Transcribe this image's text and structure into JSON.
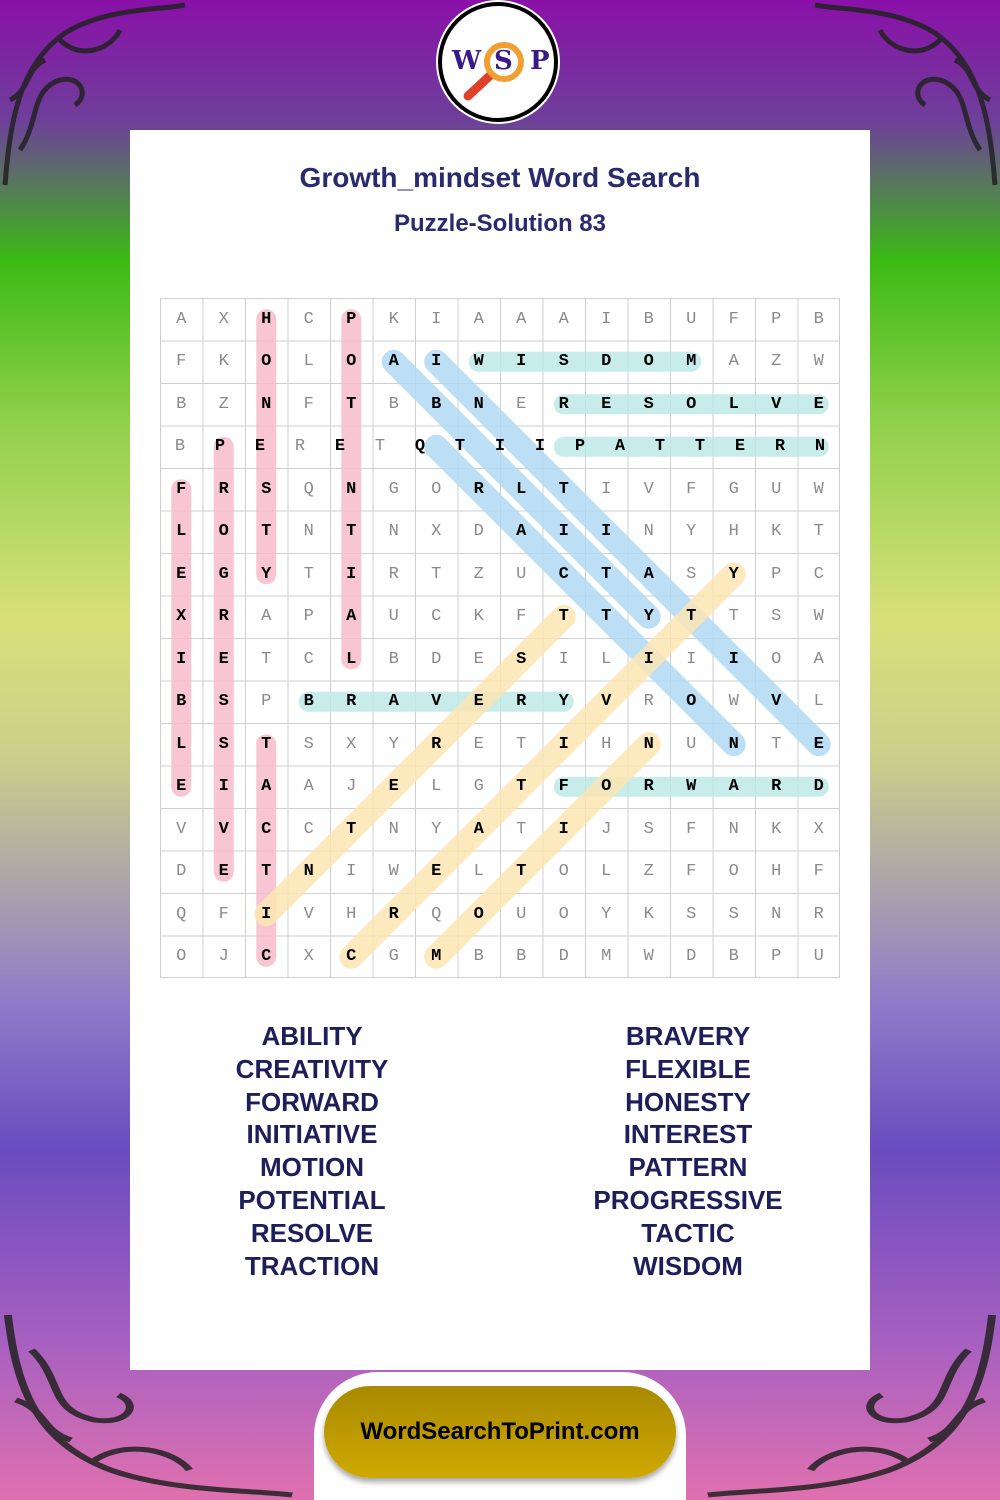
{
  "logo": {
    "letters": [
      "W",
      "S",
      "P"
    ]
  },
  "header": {
    "title": "Growth_mindset Word Search",
    "subtitle": "Puzzle-Solution 83"
  },
  "grid": {
    "rows": [
      "AXHCPKIAAAIBUFPB",
      "FKOLOAIWISDOMAZW",
      "BZNFTBBNERESOLVE",
      "BPERETQTIIPATTERN",
      "FRSQNGORLTIVFGUW",
      "LOTNTNXDAIINYHKT",
      "EGYTIRTZUCTASYPC",
      "XRAPAUCKFTTYTTSW",
      "IETCLBDESILIIIOA",
      "BSPBRAVERYVROWVL",
      "LSTSXYRETIHNUNTE",
      "EIAAJELGTFORWARD",
      "VVCCTNYATIJSFNKX",
      "DETNIWELTOLZFOHF",
      "QFIVHRQOUOYKSSNR",
      "OJCXCGMBBDMWDBPU"
    ]
  },
  "colors": {
    "pink": "#f7bccb",
    "teal": "#bde9e6",
    "blue": "#b2d9f4",
    "yellow": "#fbe5b3",
    "title": "#2a2a6e",
    "words": "#1e1e5a",
    "button": "#c4a000"
  },
  "solutions": [
    {
      "word": "HONESTY",
      "row": 0,
      "col": 2,
      "dir": "down",
      "color": "pink"
    },
    {
      "word": "POTENTIAL",
      "row": 0,
      "col": 4,
      "dir": "down",
      "color": "pink"
    },
    {
      "word": "PROGRESSIVE",
      "row": 3,
      "col": 1,
      "dir": "down",
      "color": "pink"
    },
    {
      "word": "FLEXIBLE",
      "row": 4,
      "col": 0,
      "dir": "down",
      "color": "pink"
    },
    {
      "word": "TACTIC",
      "row": 10,
      "col": 2,
      "dir": "down",
      "color": "pink"
    },
    {
      "word": "WISDOM",
      "row": 1,
      "col": 7,
      "dir": "right",
      "color": "teal"
    },
    {
      "word": "RESOLVE",
      "row": 2,
      "col": 9,
      "dir": "right",
      "color": "teal"
    },
    {
      "word": "PATTERN",
      "row": 3,
      "col": 9,
      "dir": "right",
      "color": "teal"
    },
    {
      "word": "BRAVERY",
      "row": 9,
      "col": 3,
      "dir": "right",
      "color": "teal"
    },
    {
      "word": "FORWARD",
      "row": 11,
      "col": 9,
      "dir": "right",
      "color": "teal"
    },
    {
      "word": "ABILITY",
      "row": 1,
      "col": 5,
      "dir": "down-right",
      "color": "blue"
    },
    {
      "word": "INITIATIVE",
      "row": 1,
      "col": 6,
      "dir": "down-right",
      "color": "blue"
    },
    {
      "word": "TRACTION",
      "row": 3,
      "col": 6,
      "dir": "down-right",
      "color": "blue"
    },
    {
      "word": "CREATIVITY",
      "row": 15,
      "col": 4,
      "dir": "up-right",
      "color": "yellow"
    },
    {
      "word": "INTEREST",
      "row": 14,
      "col": 2,
      "dir": "up-right",
      "color": "yellow"
    },
    {
      "word": "MOTION",
      "row": 15,
      "col": 6,
      "dir": "up-right",
      "color": "yellow"
    }
  ],
  "word_list": {
    "left": [
      "ABILITY",
      "CREATIVITY",
      "FORWARD",
      "INITIATIVE",
      "MOTION",
      "POTENTIAL",
      "RESOLVE",
      "TRACTION"
    ],
    "right": [
      "BRAVERY",
      "FLEXIBLE",
      "HONESTY",
      "INTEREST",
      "PATTERN",
      "PROGRESSIVE",
      "TACTIC",
      "WISDOM"
    ]
  },
  "footer": {
    "site": "WordSearchToPrint.com"
  }
}
